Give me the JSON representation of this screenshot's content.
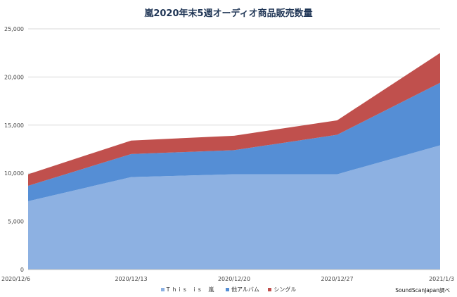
{
  "chart_data": {
    "type": "area",
    "stacked": true,
    "title": "嵐2020年末5週オーディオ商品販売数量",
    "xlabel": "",
    "ylabel": "",
    "categories": [
      "2020/12/6",
      "2020/12/13",
      "2020/12/20",
      "2020/12/27",
      "2021/1/3"
    ],
    "ylim": [
      0,
      25000
    ],
    "yticks": [
      "0",
      "5,000",
      "10,000",
      "15,000",
      "20,000",
      "25,000"
    ],
    "ytick_values": [
      0,
      5000,
      10000,
      15000,
      20000,
      25000
    ],
    "grid": true,
    "legend_position": "bottom",
    "series": [
      {
        "name": "This is 嵐",
        "color": "#8db1e2",
        "values": [
          7100,
          9600,
          9900,
          9900,
          12900
        ]
      },
      {
        "name": "他アルバム",
        "color": "#558ed5",
        "values": [
          1600,
          2400,
          2500,
          4100,
          6500
        ]
      },
      {
        "name": "シングル",
        "color": "#c0504d",
        "values": [
          1200,
          1400,
          1500,
          1500,
          3100
        ]
      }
    ],
    "source_note": "SoundScanJapan調べ"
  }
}
